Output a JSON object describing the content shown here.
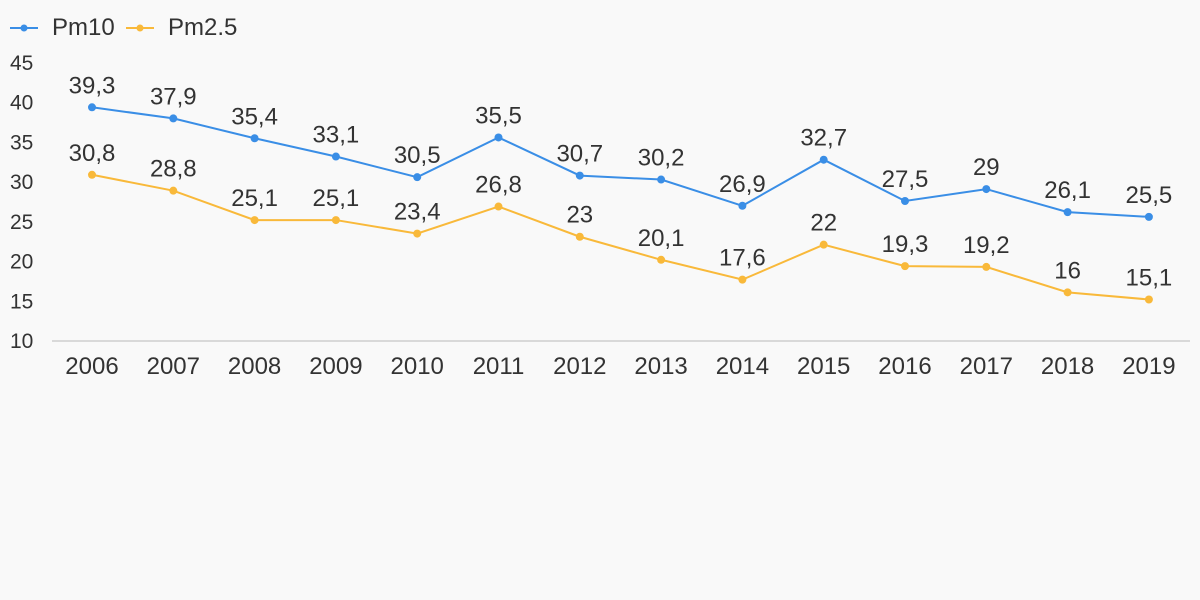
{
  "chart_data": {
    "type": "line",
    "title": "",
    "xlabel": "",
    "ylabel": "",
    "categories": [
      "2006",
      "2007",
      "2008",
      "2009",
      "2010",
      "2011",
      "2012",
      "2013",
      "2014",
      "2015",
      "2016",
      "2017",
      "2018",
      "2019"
    ],
    "ylim": [
      10,
      45
    ],
    "yticks": [
      10,
      15,
      20,
      25,
      30,
      35,
      40,
      45
    ],
    "grid": false,
    "legend_position": "top-left",
    "series": [
      {
        "name": "Pm10",
        "color": "#3a8ee6",
        "values": [
          39.3,
          37.9,
          35.4,
          33.1,
          30.5,
          35.5,
          30.7,
          30.2,
          26.9,
          32.7,
          27.5,
          29,
          26.1,
          25.5
        ],
        "labels": [
          "39,3",
          "37,9",
          "35,4",
          "33,1",
          "30,5",
          "35,5",
          "30,7",
          "30,2",
          "26,9",
          "32,7",
          "27,5",
          "29",
          "26,1",
          "25,5"
        ]
      },
      {
        "name": "Pm2.5",
        "color": "#f9b93a",
        "values": [
          30.8,
          28.8,
          25.1,
          25.1,
          23.4,
          26.8,
          23,
          20.1,
          17.6,
          22,
          19.3,
          19.2,
          16,
          15.1
        ],
        "labels": [
          "30,8",
          "28,8",
          "25,1",
          "25,1",
          "23,4",
          "26,8",
          "23",
          "20,1",
          "17,6",
          "22",
          "19,3",
          "19,2",
          "16",
          "15,1"
        ]
      }
    ]
  }
}
